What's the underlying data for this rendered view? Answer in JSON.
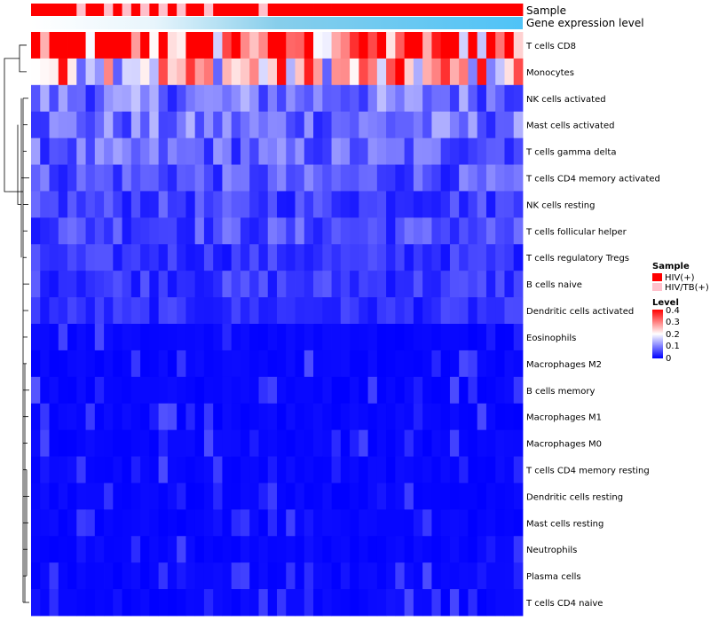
{
  "chart_data": {
    "type": "heatmap",
    "annotation_labels": [
      "Sample",
      "Gene expression level"
    ],
    "sample_groups": [
      "HIV(+)",
      "HIV(+)",
      "HIV(+)",
      "HIV(+)",
      "HIV(+)",
      "HIV/TB(+)",
      "HIV(+)",
      "HIV(+)",
      "HIV/TB(+)",
      "HIV(+)",
      "HIV/TB(+)",
      "HIV(+)",
      "HIV/TB(+)",
      "HIV(+)",
      "HIV/TB(+)",
      "HIV(+)",
      "HIV/TB(+)",
      "HIV(+)",
      "HIV(+)",
      "HIV/TB(+)",
      "HIV(+)",
      "HIV(+)",
      "HIV(+)",
      "HIV(+)",
      "HIV(+)",
      "HIV/TB(+)",
      "HIV(+)",
      "HIV(+)",
      "HIV(+)",
      "HIV(+)",
      "HIV(+)",
      "HIV(+)",
      "HIV(+)",
      "HIV(+)",
      "HIV(+)",
      "HIV(+)",
      "HIV(+)",
      "HIV(+)",
      "HIV(+)",
      "HIV(+)",
      "HIV(+)",
      "HIV(+)",
      "HIV(+)",
      "HIV(+)",
      "HIV(+)",
      "HIV(+)",
      "HIV(+)",
      "HIV(+)",
      "HIV(+)",
      "HIV(+)",
      "HIV(+)",
      "HIV(+)",
      "HIV(+)",
      "HIV(+)"
    ],
    "rows": [
      "T cells CD8",
      "Monocytes",
      "NK cells activated",
      "Mast cells activated",
      "T cells gamma delta",
      "T cells CD4 memory activated",
      "NK cells resting",
      "T cells follicular helper",
      "T cells regulatory  Tregs",
      "B cells naive",
      "Dendritic cells activated",
      "Eosinophils",
      "Macrophages M2",
      "B cells memory",
      "Macrophages M1",
      "Macrophages M0",
      "T cells CD4 memory resting",
      "Dendritic cells resting",
      "Mast cells resting",
      "Neutrophils",
      "Plasma cells",
      "T cells CD4 naive"
    ],
    "n_columns": 54,
    "row_base_level": [
      0.36,
      0.24,
      0.09,
      0.085,
      0.075,
      0.065,
      0.05,
      0.06,
      0.04,
      0.045,
      0.035,
      0.02,
      0.018,
      0.022,
      0.018,
      0.016,
      0.008,
      0.007,
      0.004,
      0.003,
      0.012,
      0.008
    ],
    "level_range": [
      0,
      0.4
    ],
    "legend": {
      "sample_title": "Sample",
      "sample_entries": [
        {
          "label": "HIV(+)",
          "color": "#ff0000"
        },
        {
          "label": "HIV/TB(+)",
          "color": "#ffc0cb"
        }
      ],
      "level_title": "Level",
      "level_ticks": [
        "0.4",
        "0.3",
        "0.2",
        "0.1",
        "0"
      ]
    },
    "colors": {
      "low": "#0000ff",
      "mid": "#ffffff",
      "high": "#ff0000",
      "expression_bar": "#87ceeb",
      "hiv": "#ff0000",
      "hiv_tb": "#ffc0cb"
    }
  }
}
